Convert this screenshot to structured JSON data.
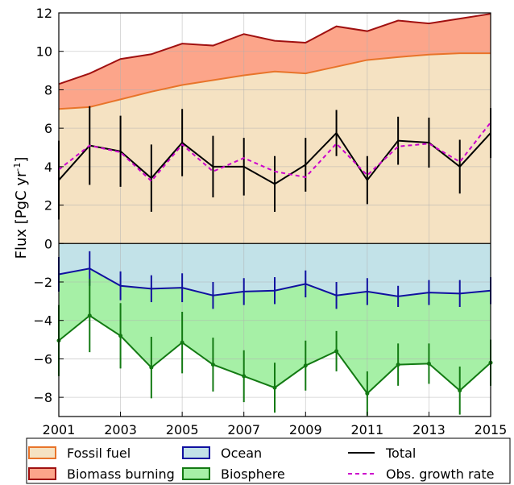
{
  "chart_data": {
    "type": "area",
    "ylabel_main": "Flux [PgC yr",
    "ylabel_sup": "-1",
    "ylabel_end": "]",
    "xlim": [
      2001,
      2015
    ],
    "ylim": [
      -9,
      12
    ],
    "xticks": [
      2001,
      2003,
      2005,
      2007,
      2009,
      2011,
      2013,
      2015
    ],
    "yticks": [
      -8,
      -6,
      -4,
      -2,
      0,
      2,
      4,
      6,
      8,
      10,
      12
    ],
    "xtick_labels": [
      "2001",
      "2003",
      "2005",
      "2007",
      "2009",
      "2011",
      "2013",
      "2015"
    ],
    "ytick_labels": [
      "−8",
      "−6",
      "−4",
      "−2",
      "0",
      "2",
      "4",
      "6",
      "8",
      "10",
      "12"
    ],
    "grid": true,
    "legend_placement": "bottom",
    "x": [
      2001,
      2002,
      2003,
      2004,
      2005,
      2006,
      2007,
      2008,
      2009,
      2010,
      2011,
      2012,
      2013,
      2014,
      2015
    ],
    "series": [
      {
        "name": "Fossil fuel",
        "kind": "area",
        "fill": "#f5e2c2",
        "edge": "#e8742a",
        "values": [
          7.0,
          7.1,
          7.5,
          7.9,
          8.25,
          8.5,
          8.75,
          8.95,
          8.85,
          9.2,
          9.55,
          9.7,
          9.83,
          9.9,
          9.9
        ]
      },
      {
        "name": "Biomass burning",
        "kind": "area",
        "fill": "#fca58a",
        "edge": "#a01010",
        "values": [
          8.3,
          8.85,
          9.6,
          9.85,
          10.4,
          10.3,
          10.9,
          10.55,
          10.45,
          11.3,
          11.05,
          11.6,
          11.45,
          11.7,
          11.95
        ]
      },
      {
        "name": "Ocean",
        "kind": "area",
        "fill": "#c2e2e8",
        "edge": "#1010a0",
        "values": [
          -1.6,
          -1.3,
          -2.2,
          -2.35,
          -2.3,
          -2.7,
          -2.5,
          -2.45,
          -2.1,
          -2.7,
          -2.5,
          -2.75,
          -2.55,
          -2.6,
          -2.45
        ],
        "error": [
          0.9,
          0.9,
          0.75,
          0.7,
          0.75,
          0.7,
          0.7,
          0.7,
          0.7,
          0.7,
          0.7,
          0.55,
          0.65,
          0.7,
          0.7
        ]
      },
      {
        "name": "Biosphere",
        "kind": "area",
        "fill": "#a6f0a6",
        "edge": "#137a13",
        "values": [
          -5.05,
          -3.75,
          -4.8,
          -6.45,
          -5.15,
          -6.3,
          -6.9,
          -7.5,
          -6.35,
          -5.6,
          -7.8,
          -6.3,
          -6.25,
          -7.65,
          -6.2
        ],
        "error": [
          1.85,
          1.9,
          1.7,
          1.6,
          1.6,
          1.4,
          1.35,
          1.3,
          1.3,
          1.05,
          1.15,
          1.1,
          1.05,
          1.25,
          1.2
        ]
      },
      {
        "name": "Total",
        "kind": "line",
        "color": "#000000",
        "values": [
          3.3,
          5.1,
          4.8,
          3.4,
          5.25,
          4.0,
          4.0,
          3.1,
          4.1,
          5.75,
          3.3,
          5.35,
          5.25,
          4.0,
          5.75
        ],
        "error": [
          2.05,
          2.05,
          1.85,
          1.75,
          1.75,
          1.6,
          1.5,
          1.45,
          1.4,
          1.2,
          1.25,
          1.25,
          1.3,
          1.4,
          1.3
        ]
      },
      {
        "name": "Obs. growth rate",
        "kind": "dashed",
        "color": "#cc00cc",
        "values": [
          3.85,
          5.1,
          4.75,
          3.25,
          5.15,
          3.75,
          4.45,
          3.75,
          3.45,
          5.2,
          3.55,
          5.05,
          5.2,
          4.25,
          6.3
        ]
      }
    ],
    "legend": [
      {
        "label": "Fossil fuel",
        "swatch": "box",
        "fill": "#f5e2c2",
        "edge": "#e8742a"
      },
      {
        "label": "Ocean",
        "swatch": "box",
        "fill": "#c2e2e8",
        "edge": "#1010a0"
      },
      {
        "label": "Total",
        "swatch": "line",
        "color": "#000000"
      },
      {
        "label": "Biomass burning",
        "swatch": "box",
        "fill": "#fca58a",
        "edge": "#a01010"
      },
      {
        "label": "Biosphere",
        "swatch": "box",
        "fill": "#a6f0a6",
        "edge": "#137a13"
      },
      {
        "label": "Obs. growth rate",
        "swatch": "dashed",
        "color": "#cc00cc"
      }
    ]
  }
}
